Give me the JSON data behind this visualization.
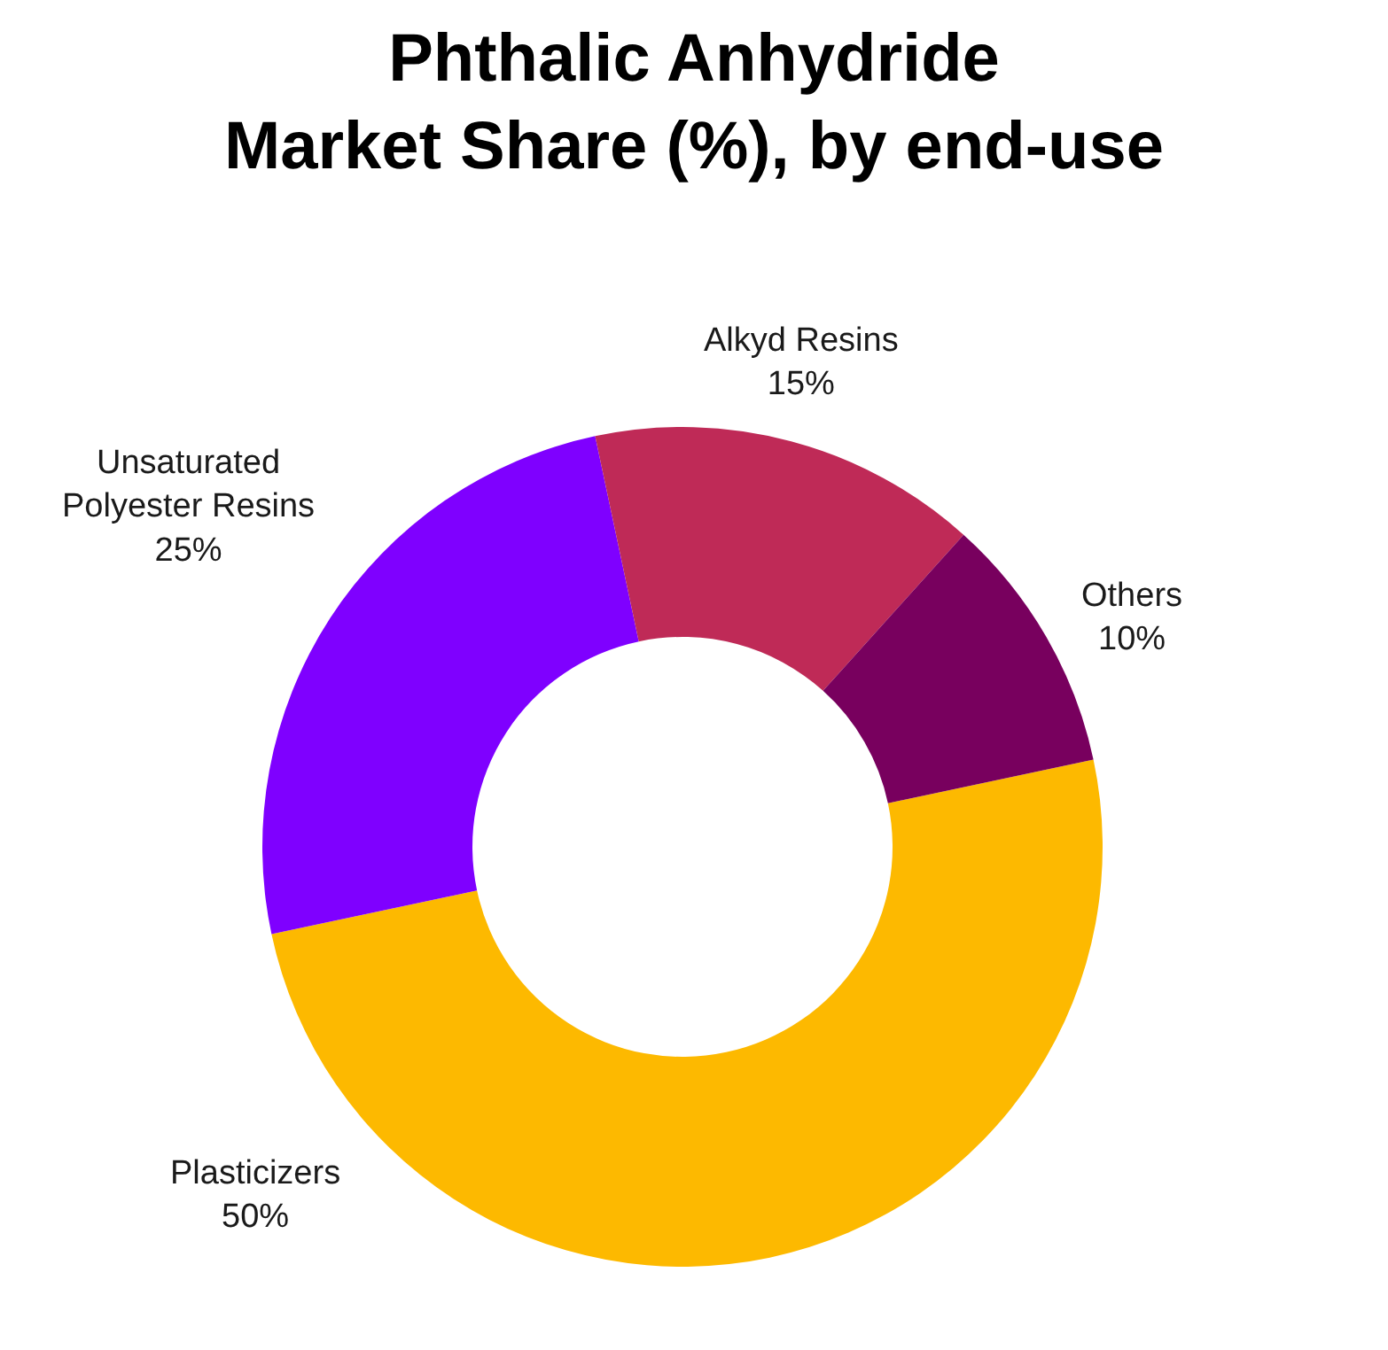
{
  "chart_data": {
    "type": "donut",
    "title": "Phthalic Anhydride\nMarket Share (%), by end-use",
    "categories": [
      "Plasticizers",
      "Unsaturated Polyester Resins",
      "Alkyd Resins",
      "Others"
    ],
    "values": [
      50,
      25,
      15,
      10
    ],
    "value_labels": [
      "50%",
      "25%",
      "15%",
      "10%"
    ],
    "colors": [
      "#fdb900",
      "#7f00ff",
      "#bf2a57",
      "#78005e"
    ],
    "legend": false
  }
}
